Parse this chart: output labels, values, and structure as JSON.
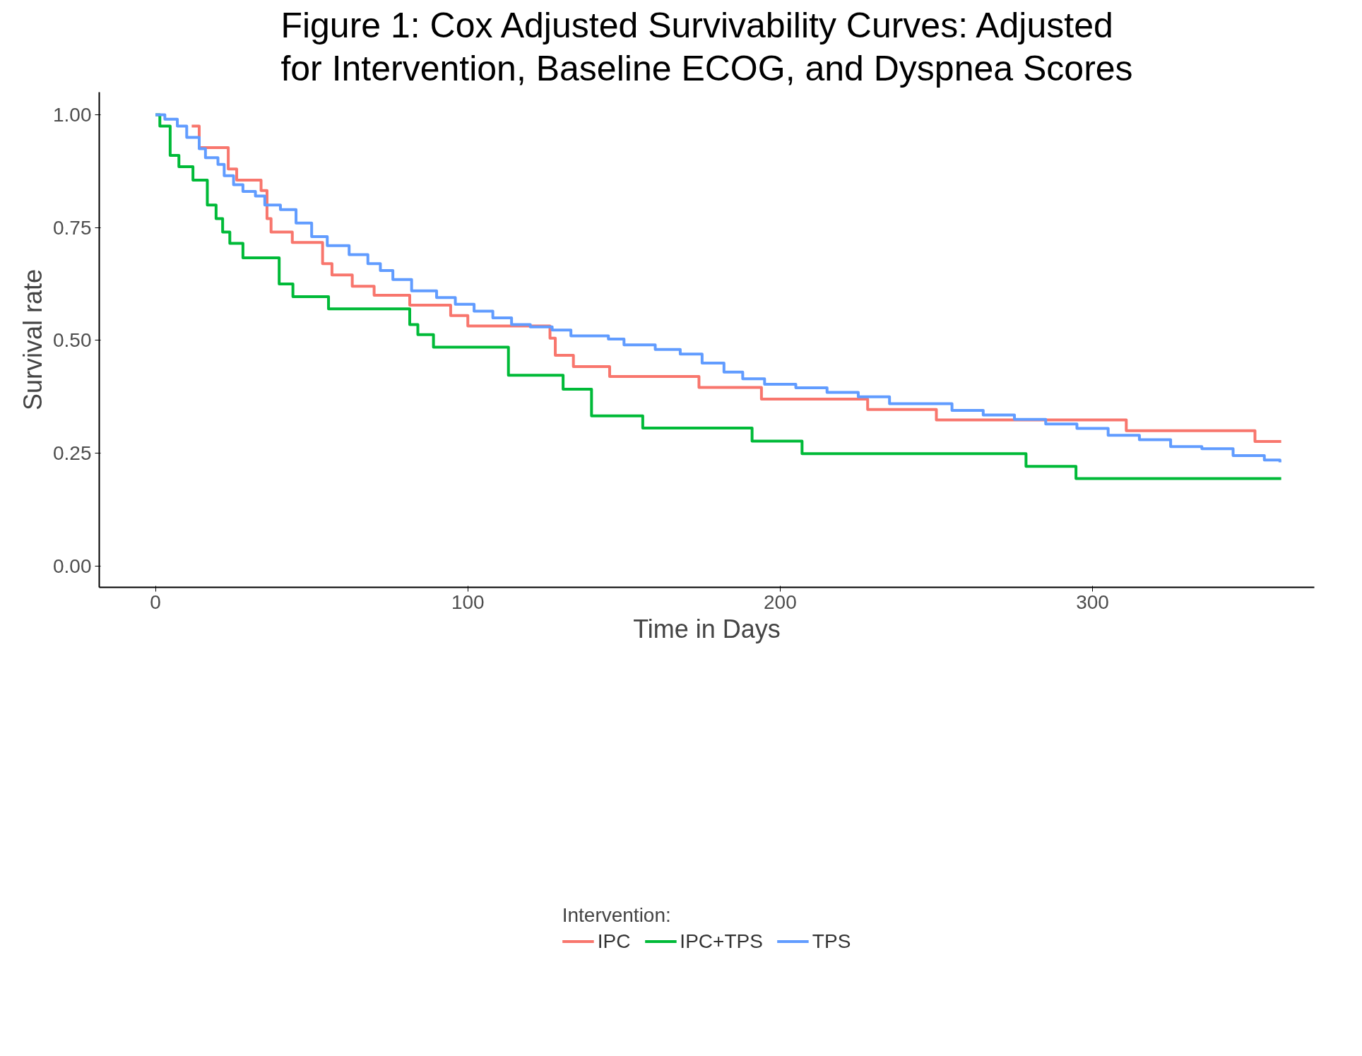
{
  "chart_data": {
    "type": "step",
    "title": "Figure 1: Cox Adjusted Survivability Curves: Adjusted for Intervention, Baseline ECOG, and Dyspnea Scores",
    "xlabel": "Time in Days",
    "ylabel": "Survival rate",
    "legend_title": "Intervention:",
    "legend": "bottom",
    "grid": false,
    "xlim": [
      -18,
      371
    ],
    "xticks": [
      0,
      100,
      200,
      300
    ],
    "ylim": [
      -0.047,
      1.05
    ],
    "yticks": [
      {
        "value": 0,
        "label": "0.00"
      },
      {
        "value": 0.25,
        "label": "0.25"
      },
      {
        "value": 0.5,
        "label": "0.50"
      },
      {
        "value": 0.75,
        "label": "0.75"
      },
      {
        "value": 1,
        "label": "1.00"
      }
    ],
    "series": [
      {
        "name": "IPC",
        "color": "#f8766d",
        "x": [
          11.6,
          14,
          23.3,
          26,
          33.8,
          35.7,
          37,
          43.8,
          53.5,
          56.5,
          63,
          70,
          81.4,
          94.5,
          100,
          126.3,
          128,
          133.8,
          145.4,
          174,
          194,
          228,
          250,
          310.8,
          352,
          360.4
        ],
        "values": [
          0.975,
          0.927,
          0.88,
          0.855,
          0.832,
          0.77,
          0.74,
          0.717,
          0.67,
          0.645,
          0.62,
          0.6,
          0.578,
          0.555,
          0.532,
          0.505,
          0.467,
          0.442,
          0.42,
          0.396,
          0.37,
          0.347,
          0.324,
          0.3,
          0.276,
          0.276
        ]
      },
      {
        "name": "IPC+TPS",
        "color": "#00ba38",
        "x": [
          0,
          1.4,
          4.7,
          7.5,
          12,
          16.6,
          19.4,
          21.5,
          23.8,
          28,
          39.6,
          44,
          55.4,
          81.4,
          84,
          89,
          113,
          130.5,
          139.6,
          156,
          191,
          207,
          278.7,
          294.7,
          360.4
        ],
        "values": [
          1.0,
          0.975,
          0.91,
          0.885,
          0.855,
          0.8,
          0.77,
          0.74,
          0.715,
          0.683,
          0.625,
          0.597,
          0.57,
          0.535,
          0.513,
          0.485,
          0.423,
          0.392,
          0.333,
          0.306,
          0.277,
          0.249,
          0.221,
          0.194,
          0.194
        ]
      },
      {
        "name": "TPS",
        "color": "#619cff",
        "x": [
          0,
          3,
          7,
          10,
          14,
          16,
          20,
          22,
          25,
          28,
          32,
          35,
          40,
          45,
          50,
          55,
          62,
          68,
          72,
          76,
          82,
          90,
          96,
          102,
          108,
          114,
          120,
          127,
          133,
          145,
          150,
          160,
          168,
          175,
          182,
          188,
          195,
          205,
          215,
          225,
          235,
          245,
          255,
          265,
          275,
          285,
          295,
          305,
          315,
          325,
          335,
          345,
          355,
          360
        ],
        "values": [
          1.0,
          0.99,
          0.975,
          0.95,
          0.925,
          0.905,
          0.89,
          0.865,
          0.845,
          0.83,
          0.82,
          0.8,
          0.79,
          0.76,
          0.73,
          0.71,
          0.69,
          0.67,
          0.655,
          0.635,
          0.61,
          0.595,
          0.58,
          0.565,
          0.55,
          0.535,
          0.53,
          0.523,
          0.51,
          0.503,
          0.49,
          0.48,
          0.47,
          0.45,
          0.43,
          0.415,
          0.403,
          0.395,
          0.385,
          0.375,
          0.36,
          0.36,
          0.345,
          0.335,
          0.325,
          0.315,
          0.305,
          0.29,
          0.28,
          0.265,
          0.26,
          0.245,
          0.235,
          0.23
        ]
      }
    ]
  }
}
